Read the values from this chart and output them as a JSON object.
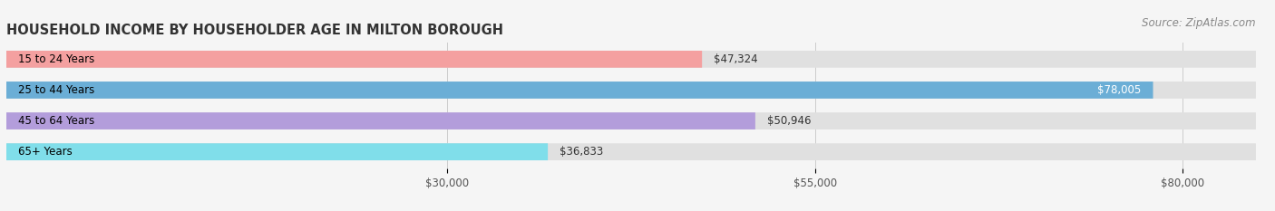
{
  "title": "HOUSEHOLD INCOME BY HOUSEHOLDER AGE IN MILTON BOROUGH",
  "source": "Source: ZipAtlas.com",
  "categories": [
    "15 to 24 Years",
    "25 to 44 Years",
    "45 to 64 Years",
    "65+ Years"
  ],
  "values": [
    47324,
    78005,
    50946,
    36833
  ],
  "bar_colors": [
    "#f4a0a0",
    "#6baed6",
    "#b39ddb",
    "#80deea"
  ],
  "value_labels": [
    "$47,324",
    "$78,005",
    "$50,946",
    "$36,833"
  ],
  "x_ticks": [
    30000,
    55000,
    80000
  ],
  "x_tick_labels": [
    "$30,000",
    "$55,000",
    "$80,000"
  ],
  "xlim": [
    0,
    85000
  ],
  "bar_height": 0.55,
  "figsize": [
    14.06,
    2.33
  ],
  "dpi": 100,
  "title_fontsize": 10.5,
  "label_fontsize": 8.5,
  "value_fontsize": 8.5,
  "source_fontsize": 8.5,
  "tick_fontsize": 8.5,
  "bg_color": "#f5f5f5"
}
